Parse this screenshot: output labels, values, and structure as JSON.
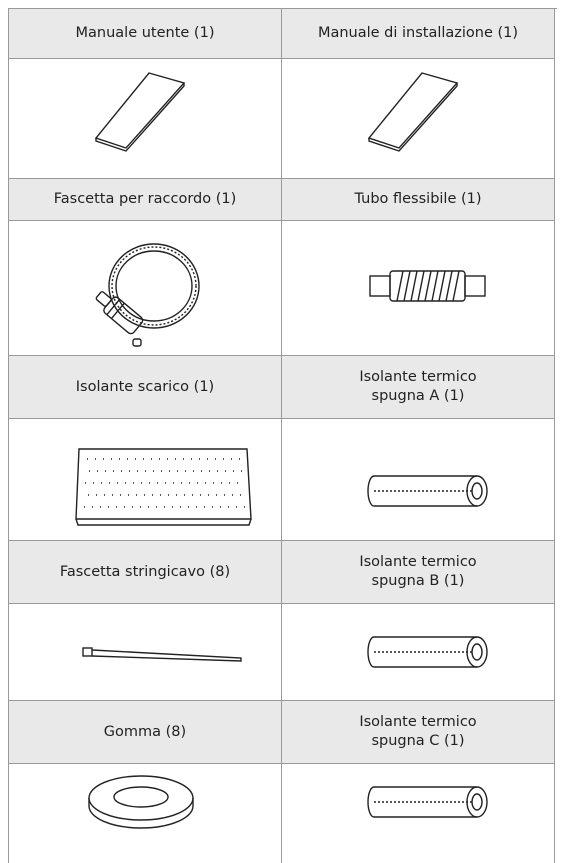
{
  "table": {
    "rows": [
      [
        "Manuale utente (1)",
        "Manuale di installazione (1)"
      ],
      [
        "Fascetta per raccordo (1)",
        "Tubo flessibile (1)"
      ],
      [
        "Isolante scarico (1)",
        "Isolante termico\nspugna A (1)"
      ],
      [
        "Fascetta stringicavo (8)",
        "Isolante termico\nspugna B (1)"
      ],
      [
        "Gomma (8)",
        "Isolante termico\nspugna C (1)"
      ]
    ]
  }
}
